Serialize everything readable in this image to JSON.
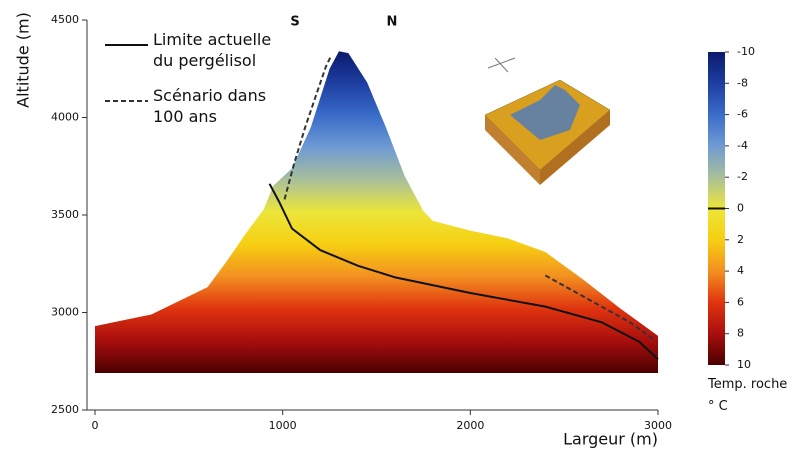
{
  "chart_data": {
    "type": "line",
    "x_label": "Largeur (m)",
    "y_label": "Altitude (m)",
    "xlim": [
      0,
      3000
    ],
    "ylim": [
      2500,
      4500
    ],
    "xticks": [
      0,
      1000,
      2000,
      3000
    ],
    "yticks": [
      2500,
      3000,
      3500,
      4000,
      4500
    ],
    "annotations": [
      "S",
      "N"
    ],
    "profile": {
      "x": [
        0,
        300,
        600,
        700,
        800,
        900,
        950,
        1050,
        1150,
        1250,
        1300,
        1350,
        1450,
        1550,
        1650,
        1750,
        1800,
        2000,
        2200,
        2400,
        2600,
        2800,
        3000,
        3000,
        0
      ],
      "values": [
        2930,
        2990,
        3130,
        3260,
        3400,
        3530,
        3650,
        3740,
        3950,
        4250,
        4340,
        4330,
        4180,
        3950,
        3700,
        3520,
        3470,
        3420,
        3380,
        3310,
        3170,
        3020,
        2880,
        2690,
        2690
      ]
    },
    "series": [
      {
        "name": "Limite actuelle\ndu pergélisol",
        "dash": "solid",
        "color": "#111111",
        "x": [
          930,
          980,
          1050,
          1200,
          1400,
          1600,
          2000,
          2400,
          2700,
          2900,
          3000
        ],
        "values": [
          3660,
          3570,
          3430,
          3320,
          3240,
          3180,
          3100,
          3030,
          2950,
          2850,
          2760
        ]
      },
      {
        "name": "Scénario dans\n100 ans",
        "dash": "dashed",
        "color": "#333333",
        "x": [
          1010,
          1060,
          1120,
          1180,
          1230,
          1260
        ],
        "values": [
          3580,
          3760,
          3950,
          4120,
          4260,
          4320
        ]
      },
      {
        "name": null,
        "dash": "dashed",
        "color": "#333333",
        "x": [
          2400,
          2550,
          2700,
          2850,
          2980
        ],
        "values": [
          3190,
          3110,
          3030,
          2950,
          2860
        ]
      }
    ],
    "colorbar": {
      "label": "Temp. roche\n° C",
      "ticks": [
        -10,
        -8,
        -6,
        -4,
        -2,
        0,
        2,
        4,
        6,
        8,
        10
      ],
      "colors": [
        "#0b1a6b",
        "#1d3ea0",
        "#3a6cc9",
        "#6f9bd3",
        "#a9bf9a",
        "#ece63a",
        "#f6cf12",
        "#f29020",
        "#e0340f",
        "#a90e0e",
        "#4a0000"
      ]
    }
  }
}
